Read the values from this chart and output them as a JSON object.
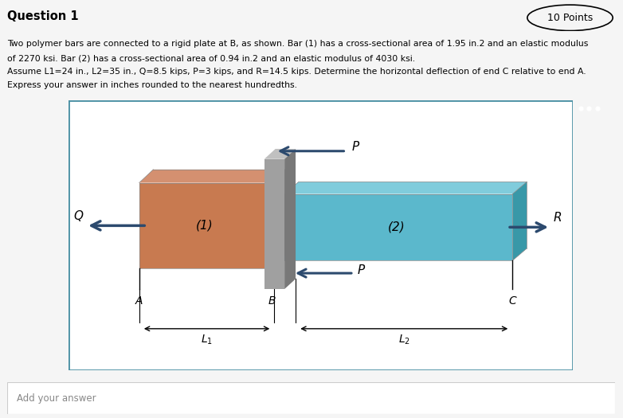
{
  "title": "Question 1",
  "points": "10 Points",
  "text_line1": "Two polymer bars are connected to a rigid plate at B, as shown. Bar (1) has a cross-sectional area of 1.95 in.2 and an elastic modulus",
  "text_line2": "of 2270 ksi. Bar (2) has a cross-sectional area of 0.94 in.2 and an elastic modulus of 4030 ksi.",
  "text_line3": "Assume L1=24 in., L2=35 in., Q=8.5 kips, P=3 kips, and R=14.5 kips. Determine the horizontal deflection of end C relative to end A.",
  "text_line4": "Express your answer in inches rounded to the nearest hundredths.",
  "bar1_color_front": "#C87A50",
  "bar1_color_top": "#D49070",
  "bar1_color_right": "#A05830",
  "bar2_color_front": "#5BB8CC",
  "bar2_color_top": "#80CCDC",
  "bar2_color_right": "#3898A8",
  "plate_color_front": "#A0A0A0",
  "plate_color_top": "#C0C0C0",
  "plate_color_right": "#787878",
  "arrow_color": "#2C4A6E",
  "bg_color": "#F5F5F5",
  "diagram_bg": "#FFFFFF",
  "border_color": "#4A90A4",
  "dots_bg": "#2A2A2A",
  "add_answer_text": "Add your answer"
}
